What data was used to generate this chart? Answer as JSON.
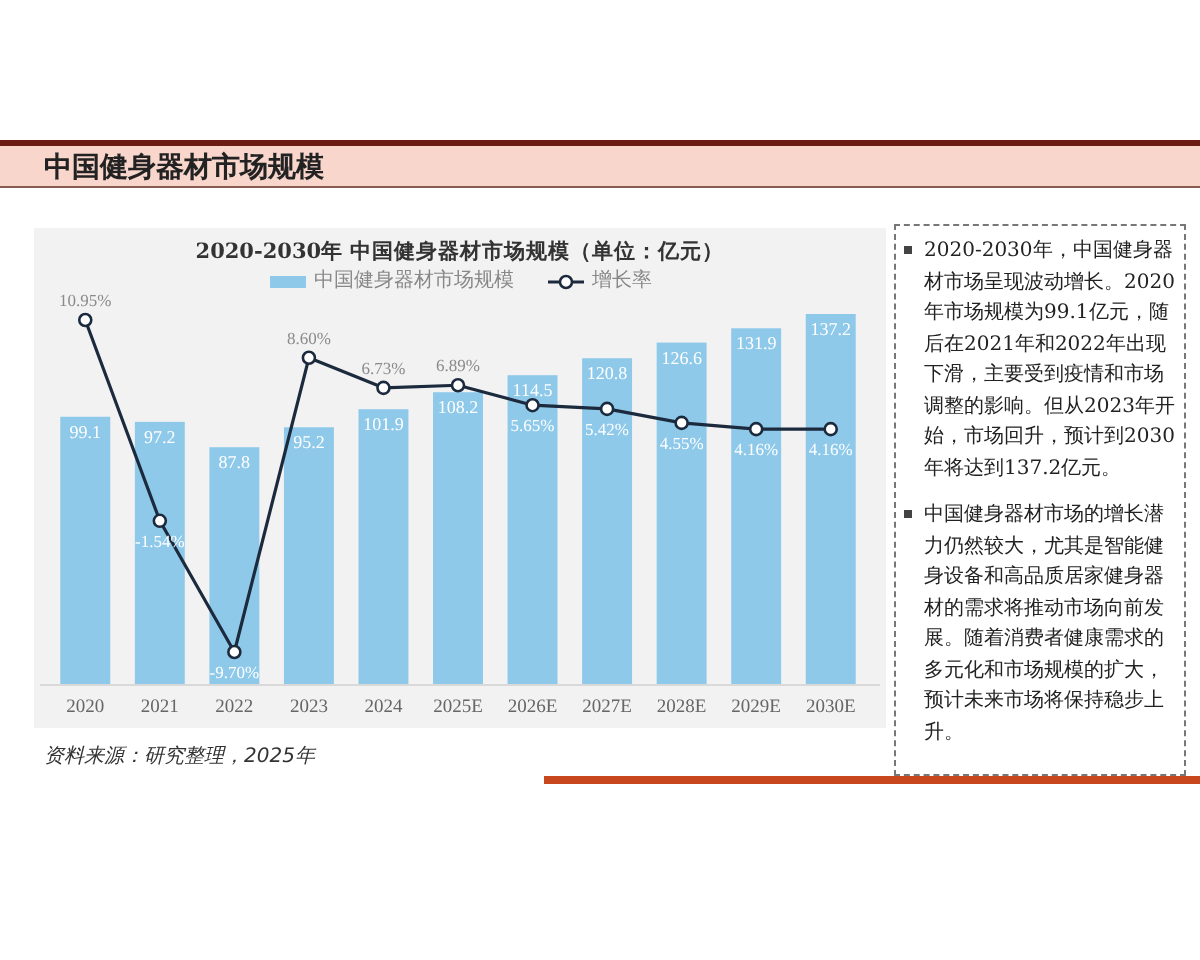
{
  "chart_data": {
    "type": "bar",
    "title": "中国健身器材市场规模",
    "subtitle": "2020-2030年 中国健身器材市场规模（单位：亿元）",
    "categories": [
      "2020",
      "2021",
      "2022",
      "2023",
      "2024",
      "2025E",
      "2026E",
      "2027E",
      "2028E",
      "2029E",
      "2030E"
    ],
    "series": [
      {
        "name": "中国健身器材市场规模",
        "color": "#8ec9ea",
        "values": [
          99.1,
          97.2,
          87.8,
          95.2,
          101.9,
          108.2,
          114.5,
          120.8,
          126.6,
          131.9,
          137.2
        ],
        "value_labels": [
          "99.1",
          "97.2",
          "87.8",
          "95.2",
          "101.9",
          "108.2",
          "114.5",
          "120.8",
          "126.6",
          "131.9",
          "137.2"
        ]
      },
      {
        "name": "增长率",
        "type": "line",
        "axis": "y2",
        "color": "#1c2a3d",
        "values": [
          10.95,
          -1.54,
          -9.7,
          8.6,
          6.73,
          6.89,
          5.65,
          5.42,
          4.55,
          4.16,
          4.16
        ],
        "value_labels": [
          "10.95%",
          "-1.54%",
          "-9.70%",
          "8.60%",
          "6.73%",
          "6.89%",
          "5.65%",
          "5.42%",
          "4.55%",
          "4.16%",
          "4.16%"
        ]
      }
    ],
    "tick_labels": "x",
    "legend": "top",
    "marker": "circle",
    "line_style": "solid",
    "annotations": [
      "2020-2030年，中国健身器材市场呈现波动增长。2020年市场规模为99.1亿元，随后在2021年和2022年出现下滑，主要受到疫情和市场调整的影响。但从2023年开始，市场回升，预计到2030年将达到137.2亿元。",
      "中国健身器材市场的增长潜力仍然较大，尤其是智能健身设备和高品质居家健身器材的需求将推动市场向前发展。随着消费者健康需求的多元化和市场规模的扩大，预计未来市场将保持稳步上升。",
      "资料来源：研究整理，2025年"
    ]
  }
}
